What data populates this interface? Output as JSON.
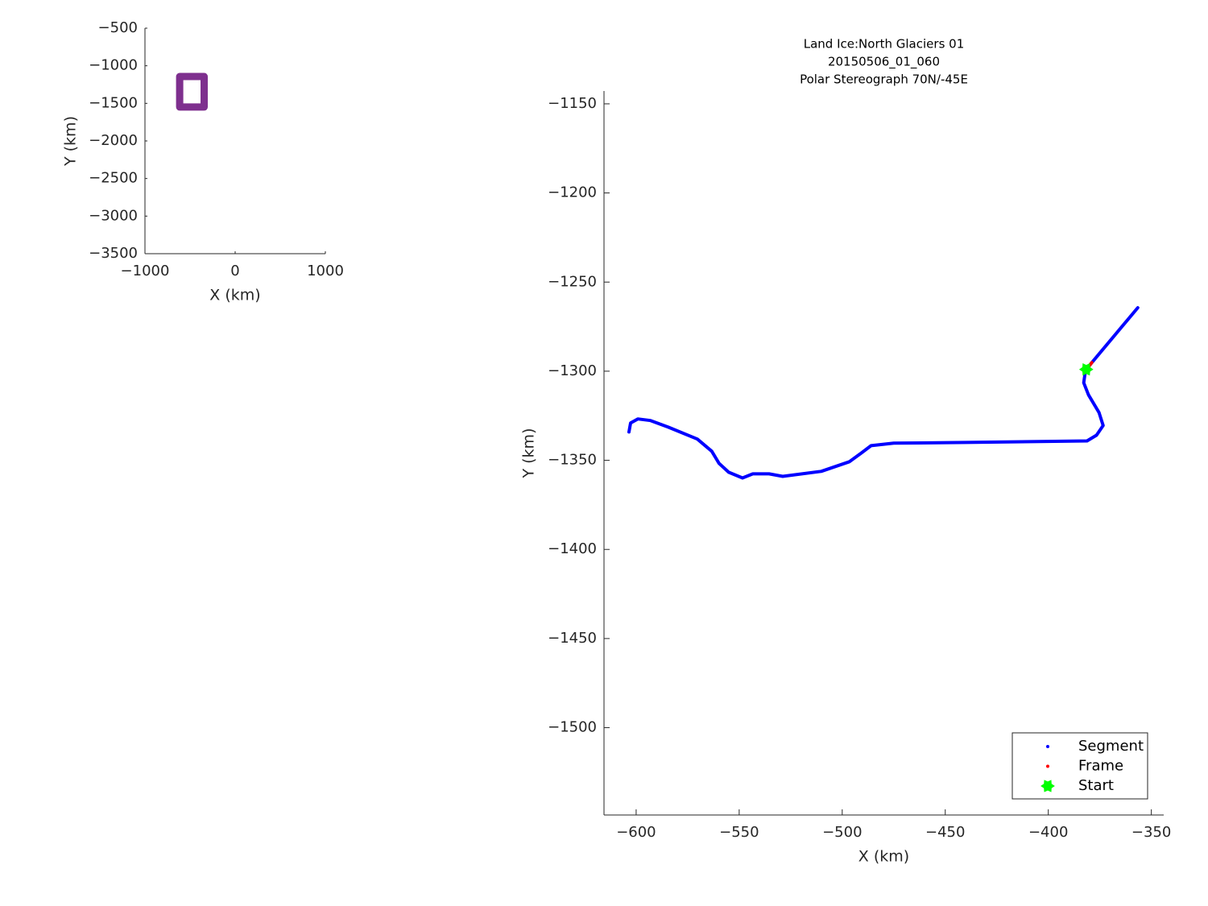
{
  "chart_data": [
    {
      "type": "line",
      "xlabel": "X (km)",
      "ylabel": "Y (km)",
      "xlim": [
        -1000,
        1000
      ],
      "ylim": [
        -3500,
        -500
      ],
      "xticks": [
        {
          "value": -1000,
          "label": "−1000"
        },
        0,
        1000
      ],
      "yticks": [
        {
          "value": -500,
          "label": "−500"
        },
        {
          "value": -1000,
          "label": "−1000"
        },
        {
          "value": -1500,
          "label": "−1500"
        },
        {
          "value": -2000,
          "label": "−2000"
        },
        {
          "value": -2500,
          "label": "−2500"
        },
        {
          "value": -3000,
          "label": "−3000"
        },
        {
          "value": -3500,
          "label": "−3500"
        }
      ],
      "grid": false,
      "series": [
        {
          "color": "#7e2f8e",
          "marker": "line",
          "x": [
            -615.6,
            -344,
            -344,
            -615.6,
            -615.6
          ],
          "values": [
            -1142.8,
            -1142.8,
            -1549,
            -1549,
            -1142.8
          ]
        }
      ]
    },
    {
      "type": "line",
      "title": [
        "Land Ice:North Glaciers 01",
        "20150506_01_060",
        "Polar Stereograph 70N/-45E"
      ],
      "xlabel": "X (km)",
      "ylabel": "Y (km)",
      "xlim": [
        -615.6,
        -344
      ],
      "ylim": [
        -1549,
        -1142.8
      ],
      "xticks": [
        {
          "value": -600,
          "label": "−600"
        },
        {
          "value": -550,
          "label": "−550"
        },
        {
          "value": -500,
          "label": "−500"
        },
        {
          "value": -450,
          "label": "−450"
        },
        {
          "value": -400,
          "label": "−400"
        },
        {
          "value": -350,
          "label": "−350"
        }
      ],
      "yticks": [
        {
          "value": -1150,
          "label": "−1150"
        },
        {
          "value": -1200,
          "label": "−1200"
        },
        {
          "value": -1250,
          "label": "−1250"
        },
        {
          "value": -1300,
          "label": "−1300"
        },
        {
          "value": -1350,
          "label": "−1350"
        },
        {
          "value": -1400,
          "label": "−1400"
        },
        {
          "value": -1450,
          "label": "−1450"
        },
        {
          "value": -1500,
          "label": "−1500"
        }
      ],
      "grid": false,
      "legend": "lower right",
      "series": [
        {
          "name": "Segment",
          "color": "#0000ff",
          "marker": ".",
          "x": [
            -603.5,
            -602.7,
            -599.2,
            -593.0,
            -584.4,
            -570.3,
            -563.3,
            -559.8,
            -555.1,
            -548.4,
            -543.4,
            -535.5,
            -528.9,
            -510.2,
            -496.5,
            -490.6,
            -486.0,
            -475.0,
            -439.8,
            -381.2,
            -376.6,
            -373.4,
            -375.4,
            -380.5,
            -382.8,
            -382.0,
            -378.9,
            -356.6
          ],
          "values": [
            -1334.1,
            -1329.1,
            -1326.8,
            -1327.7,
            -1331.4,
            -1338.1,
            -1344.9,
            -1351.7,
            -1356.7,
            -1359.9,
            -1357.6,
            -1357.6,
            -1359.0,
            -1356.2,
            -1350.8,
            -1345.8,
            -1341.8,
            -1340.4,
            -1340.0,
            -1339.1,
            -1335.9,
            -1330.5,
            -1323.2,
            -1313.3,
            -1306.5,
            -1299.7,
            -1295.2,
            -1264.4
          ]
        },
        {
          "name": "Frame",
          "color": "#ff0000",
          "marker": ".",
          "x": [
            -380.5,
            -378.9
          ],
          "values": [
            -1297.5,
            -1295.2
          ]
        },
        {
          "name": "Start",
          "color": "#00ff00",
          "marker": "hexagram",
          "x": [
            -381.6
          ],
          "values": [
            -1299.0
          ]
        }
      ]
    }
  ]
}
